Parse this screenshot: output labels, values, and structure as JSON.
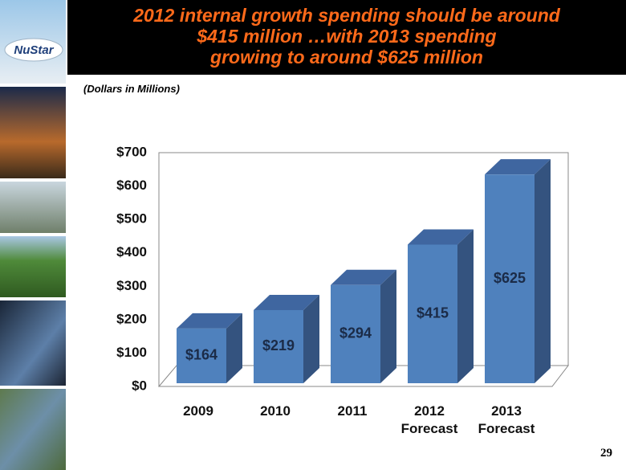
{
  "logo": "NuStar",
  "page_number": "29",
  "chart_data": {
    "type": "bar3d",
    "title": [
      "2012 internal growth spending should be around",
      "$415 million …with 2013 spending",
      "growing to around $625 million"
    ],
    "subtitle": "(Dollars in Millions)",
    "categories": [
      "2009",
      "2010",
      "2011",
      "2012 Forecast",
      "2013 Forecast"
    ],
    "values": [
      164,
      219,
      294,
      415,
      625
    ],
    "value_labels": [
      "$164",
      "$219",
      "$294",
      "$415",
      "$625"
    ],
    "color": "#4f81bd",
    "ylim": [
      0,
      700
    ],
    "yticks": [
      {
        "value": 0,
        "label": "$0"
      },
      {
        "value": 100,
        "label": "$100"
      },
      {
        "value": 200,
        "label": "$200"
      },
      {
        "value": 300,
        "label": "$300"
      },
      {
        "value": 400,
        "label": "$400"
      },
      {
        "value": 500,
        "label": "$500"
      },
      {
        "value": 600,
        "label": "$600"
      },
      {
        "value": 700,
        "label": "$700"
      }
    ],
    "grid": false
  }
}
